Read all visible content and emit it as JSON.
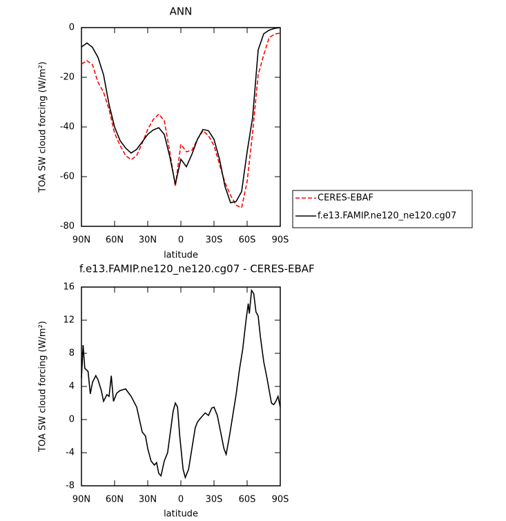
{
  "chart_data": [
    {
      "type": "line",
      "title": "ANN",
      "ylabel": "TOA SW cloud forcing (W/m²)",
      "xlabel": "latitude",
      "xlim": [
        90,
        -90
      ],
      "xticks": [
        {
          "value": 90,
          "label": "90N"
        },
        {
          "value": 60,
          "label": "60N"
        },
        {
          "value": 30,
          "label": "30N"
        },
        0,
        {
          "value": -30,
          "label": "30S"
        },
        {
          "value": -60,
          "label": "60S"
        },
        {
          "value": -90,
          "label": "90S"
        }
      ],
      "ylim": [
        -80,
        0
      ],
      "yticks": [
        -80,
        -60,
        -40,
        -20,
        0
      ],
      "legend": "right",
      "x": [
        90,
        85,
        80,
        75,
        70,
        65,
        60,
        55,
        50,
        45,
        40,
        35,
        30,
        25,
        20,
        15,
        10,
        5,
        0,
        -5,
        -10,
        -15,
        -20,
        -25,
        -30,
        -35,
        -40,
        -45,
        -50,
        -55,
        -60,
        -65,
        -70,
        -75,
        -80,
        -85,
        -90
      ],
      "series": [
        {
          "name": "CERES-EBAF",
          "color": "#ff0000",
          "linestyle": "dashed",
          "values": [
            -14.7,
            -13.3,
            -15,
            -22,
            -26,
            -33,
            -42.5,
            -47.5,
            -51.5,
            -53.2,
            -51.5,
            -46.5,
            -41,
            -37,
            -34.8,
            -37.5,
            -50,
            -64,
            -47,
            -50,
            -49.4,
            -45,
            -41.5,
            -43.5,
            -47.5,
            -55,
            -62.5,
            -67.5,
            -71.5,
            -72.5,
            -62,
            -42,
            -19,
            -11,
            -4,
            -2.6,
            -2.2
          ]
        },
        {
          "name": "f.e13.FAMIP.ne120_ne120.cg07",
          "color": "#000000",
          "linestyle": "solid",
          "values": [
            -7.8,
            -6.2,
            -8,
            -12,
            -19,
            -31,
            -40,
            -45.5,
            -48.5,
            -50.5,
            -49,
            -46,
            -43,
            -41.2,
            -40.3,
            -43,
            -52,
            -63,
            -53,
            -56,
            -51,
            -45,
            -41,
            -41.5,
            -45,
            -53,
            -64,
            -70.5,
            -70,
            -66,
            -50,
            -36,
            -9,
            -2.5,
            -1,
            -0.3,
            0
          ]
        }
      ]
    },
    {
      "type": "line",
      "title": "f.e13.FAMIP.ne120_ne120.cg07 - CERES-EBAF",
      "ylabel": "TOA SW cloud forcing (W/m²)",
      "xlabel": "latitude",
      "xlim": [
        90,
        -90
      ],
      "xticks": [
        {
          "value": 90,
          "label": "90N"
        },
        {
          "value": 60,
          "label": "60N"
        },
        {
          "value": 30,
          "label": "30N"
        },
        0,
        {
          "value": -30,
          "label": "30S"
        },
        {
          "value": -60,
          "label": "60S"
        },
        {
          "value": -90,
          "label": "90S"
        }
      ],
      "ylim": [
        -8,
        16
      ],
      "yticks": [
        -8,
        -4,
        0,
        4,
        8,
        12,
        16
      ],
      "color": "#000000",
      "x": [
        90,
        88.5,
        87,
        84,
        82,
        80,
        77,
        75,
        72,
        70,
        67,
        65,
        63,
        61,
        58,
        55,
        50,
        45,
        40,
        35,
        32,
        30,
        27,
        24,
        22,
        20,
        18,
        15,
        12,
        10,
        7,
        5,
        3,
        1,
        -2,
        -4,
        -7,
        -10,
        -13,
        -15,
        -18,
        -22,
        -25,
        -28,
        -30,
        -33,
        -36,
        -39,
        -41,
        -44,
        -47,
        -50,
        -53,
        -56,
        -59,
        -61,
        -62,
        -64,
        -66,
        -68,
        -70,
        -72,
        -75,
        -78,
        -80,
        -82,
        -84,
        -86,
        -88,
        -90
      ],
      "values": [
        5,
        9,
        6.2,
        5.8,
        3.1,
        4.5,
        5.3,
        4.8,
        3.5,
        2.2,
        3,
        2.8,
        5.3,
        2.2,
        3.2,
        3.5,
        3.7,
        2.8,
        1.5,
        -1.5,
        -2,
        -3.5,
        -5,
        -5.5,
        -5.2,
        -6.5,
        -6.8,
        -5,
        -4,
        -2,
        1,
        2,
        1.5,
        -2,
        -6,
        -7,
        -6,
        -3.5,
        -1,
        -0.3,
        0.2,
        0.8,
        0.5,
        1.4,
        1.5,
        0.5,
        -1.5,
        -3.5,
        -4.2,
        -2,
        0.5,
        3,
        6,
        8.5,
        12,
        14,
        12.8,
        15.6,
        15.2,
        13,
        12.5,
        10,
        7,
        5,
        3.5,
        2,
        1.8,
        2.2,
        2.8,
        1.5
      ]
    }
  ]
}
